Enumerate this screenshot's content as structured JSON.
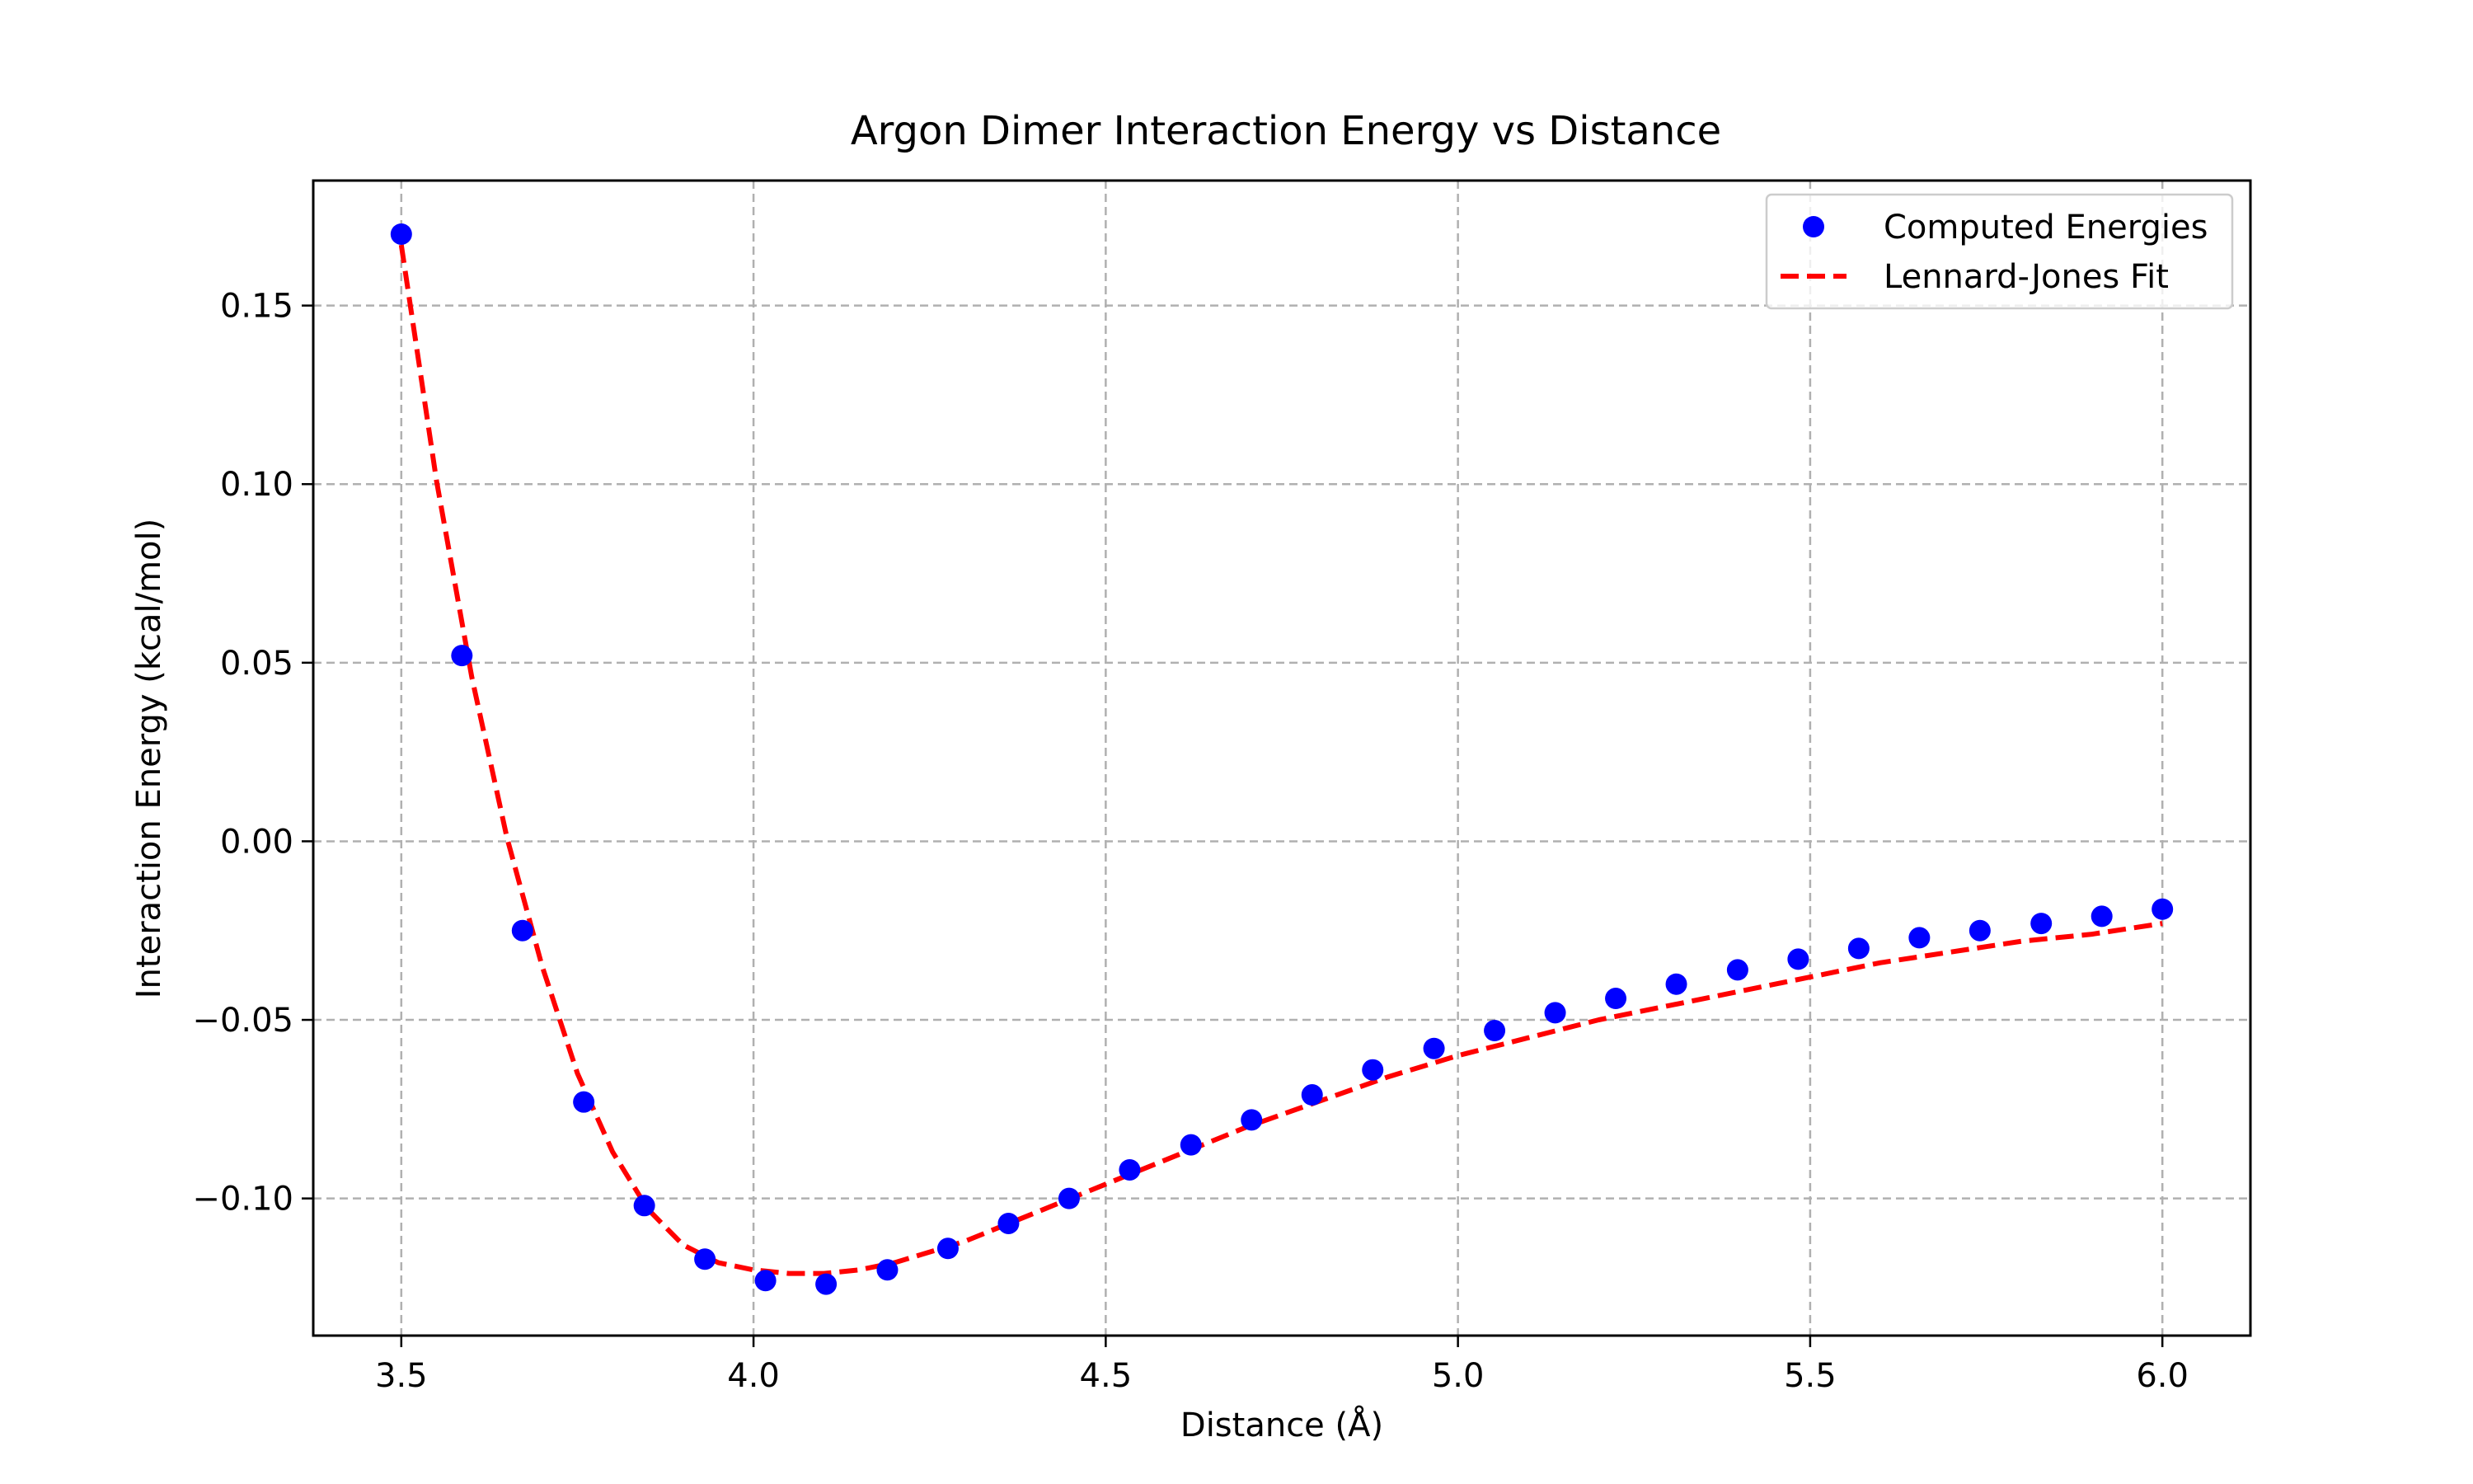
{
  "chart_data": {
    "type": "scatter",
    "title": "Argon Dimer Interaction Energy vs Distance",
    "xlabel": "Distance (Å)",
    "ylabel": "Interaction Energy (kcal/mol)",
    "xlim": [
      3.375,
      6.125
    ],
    "ylim": [
      -0.1384,
      0.185
    ],
    "x_ticks": [
      3.5,
      4.0,
      4.5,
      5.0,
      5.5,
      6.0
    ],
    "x_tick_labels": [
      "3.5",
      "4.0",
      "4.5",
      "5.0",
      "5.5",
      "6.0"
    ],
    "y_ticks": [
      0.15,
      0.1,
      0.05,
      0.0,
      -0.05,
      -0.1
    ],
    "y_tick_labels": [
      "0.15",
      "0.10",
      "0.05",
      "0.00",
      "−0.05",
      "−0.10"
    ],
    "grid": true,
    "legend_position": "top-right",
    "series": [
      {
        "name": "Computed Energies",
        "kind": "markers",
        "color": "#0000ff",
        "x": [
          3.5,
          3.586,
          3.672,
          3.759,
          3.845,
          3.931,
          4.017,
          4.103,
          4.19,
          4.276,
          4.362,
          4.448,
          4.534,
          4.621,
          4.707,
          4.793,
          4.879,
          4.966,
          5.052,
          5.138,
          5.224,
          5.31,
          5.397,
          5.483,
          5.569,
          5.655,
          5.741,
          5.828,
          5.914,
          6.0
        ],
        "y": [
          0.17,
          0.052,
          -0.025,
          -0.073,
          -0.102,
          -0.117,
          -0.123,
          -0.124,
          -0.12,
          -0.114,
          -0.107,
          -0.1,
          -0.092,
          -0.085,
          -0.078,
          -0.071,
          -0.064,
          -0.058,
          -0.053,
          -0.048,
          -0.044,
          -0.04,
          -0.036,
          -0.033,
          -0.03,
          -0.027,
          -0.025,
          -0.023,
          -0.021,
          -0.019
        ]
      },
      {
        "name": "Lennard-Jones Fit",
        "kind": "dashed-line",
        "color": "#ff0000",
        "x": [
          3.5,
          3.55,
          3.6,
          3.65,
          3.7,
          3.75,
          3.8,
          3.85,
          3.9,
          3.95,
          4.0,
          4.05,
          4.1,
          4.15,
          4.2,
          4.3,
          4.4,
          4.5,
          4.6,
          4.7,
          4.8,
          4.9,
          5.0,
          5.1,
          5.2,
          5.3,
          5.4,
          5.5,
          5.6,
          5.7,
          5.8,
          5.9,
          6.0
        ],
        "y": [
          0.167,
          0.101,
          0.046,
          0.001,
          -0.035,
          -0.065,
          -0.087,
          -0.103,
          -0.113,
          -0.118,
          -0.12,
          -0.121,
          -0.121,
          -0.12,
          -0.118,
          -0.112,
          -0.104,
          -0.096,
          -0.088,
          -0.08,
          -0.073,
          -0.066,
          -0.06,
          -0.055,
          -0.05,
          -0.046,
          -0.042,
          -0.038,
          -0.034,
          -0.031,
          -0.028,
          -0.026,
          -0.023
        ]
      }
    ]
  }
}
